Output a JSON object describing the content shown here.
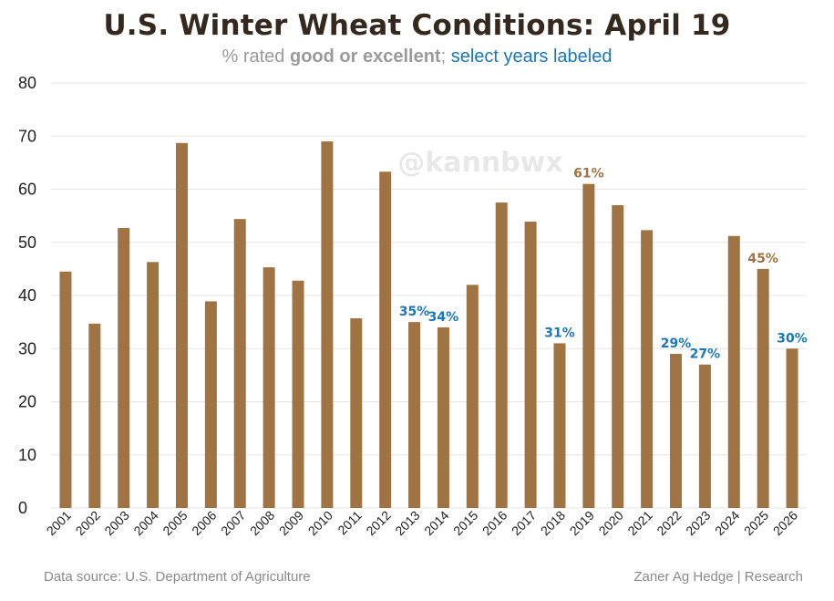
{
  "title": "U.S. Winter Wheat Conditions: April 19",
  "subtitle": {
    "prefix": "% rated ",
    "bold": "good or excellent",
    "separator": "; ",
    "highlight": "select years labeled"
  },
  "watermark": "@kannbwx",
  "footer": {
    "source": "Data source: U.S. Department of Agriculture",
    "credit": "Zaner Ag Hedge | Research"
  },
  "colors": {
    "bar": "#a07343",
    "label_brown": "#a07343",
    "label_blue": "#1a78b8",
    "grid": "#e6e6e6",
    "axis_text": "#222222"
  },
  "chart_data": {
    "type": "bar",
    "ylim": [
      0,
      80
    ],
    "yticks": [
      0,
      10,
      20,
      30,
      40,
      50,
      60,
      70,
      80
    ],
    "grid": true,
    "categories": [
      "2001",
      "2002",
      "2003",
      "2004",
      "2005",
      "2006",
      "2007",
      "2008",
      "2009",
      "2010",
      "2011",
      "2012",
      "2013",
      "2014",
      "2015",
      "2016",
      "2017",
      "2018",
      "2019",
      "2020",
      "2021",
      "2022",
      "2023",
      "2024",
      "2025",
      "2026"
    ],
    "values": [
      44.5,
      34.7,
      52.7,
      46.3,
      68.7,
      38.9,
      54.4,
      45.3,
      42.8,
      69.0,
      35.7,
      63.3,
      35.0,
      34.0,
      42.0,
      57.5,
      53.9,
      31.0,
      61.0,
      57.0,
      52.3,
      29.0,
      27.0,
      51.2,
      45.0,
      30.0
    ],
    "data_labels": [
      {
        "category": "2013",
        "text": "35%",
        "color": "blue"
      },
      {
        "category": "2014",
        "text": "34%",
        "color": "blue"
      },
      {
        "category": "2018",
        "text": "31%",
        "color": "blue"
      },
      {
        "category": "2019",
        "text": "61%",
        "color": "brown"
      },
      {
        "category": "2022",
        "text": "29%",
        "color": "blue"
      },
      {
        "category": "2023",
        "text": "27%",
        "color": "blue"
      },
      {
        "category": "2025",
        "text": "45%",
        "color": "brown"
      },
      {
        "category": "2026",
        "text": "30%",
        "color": "blue"
      }
    ]
  }
}
